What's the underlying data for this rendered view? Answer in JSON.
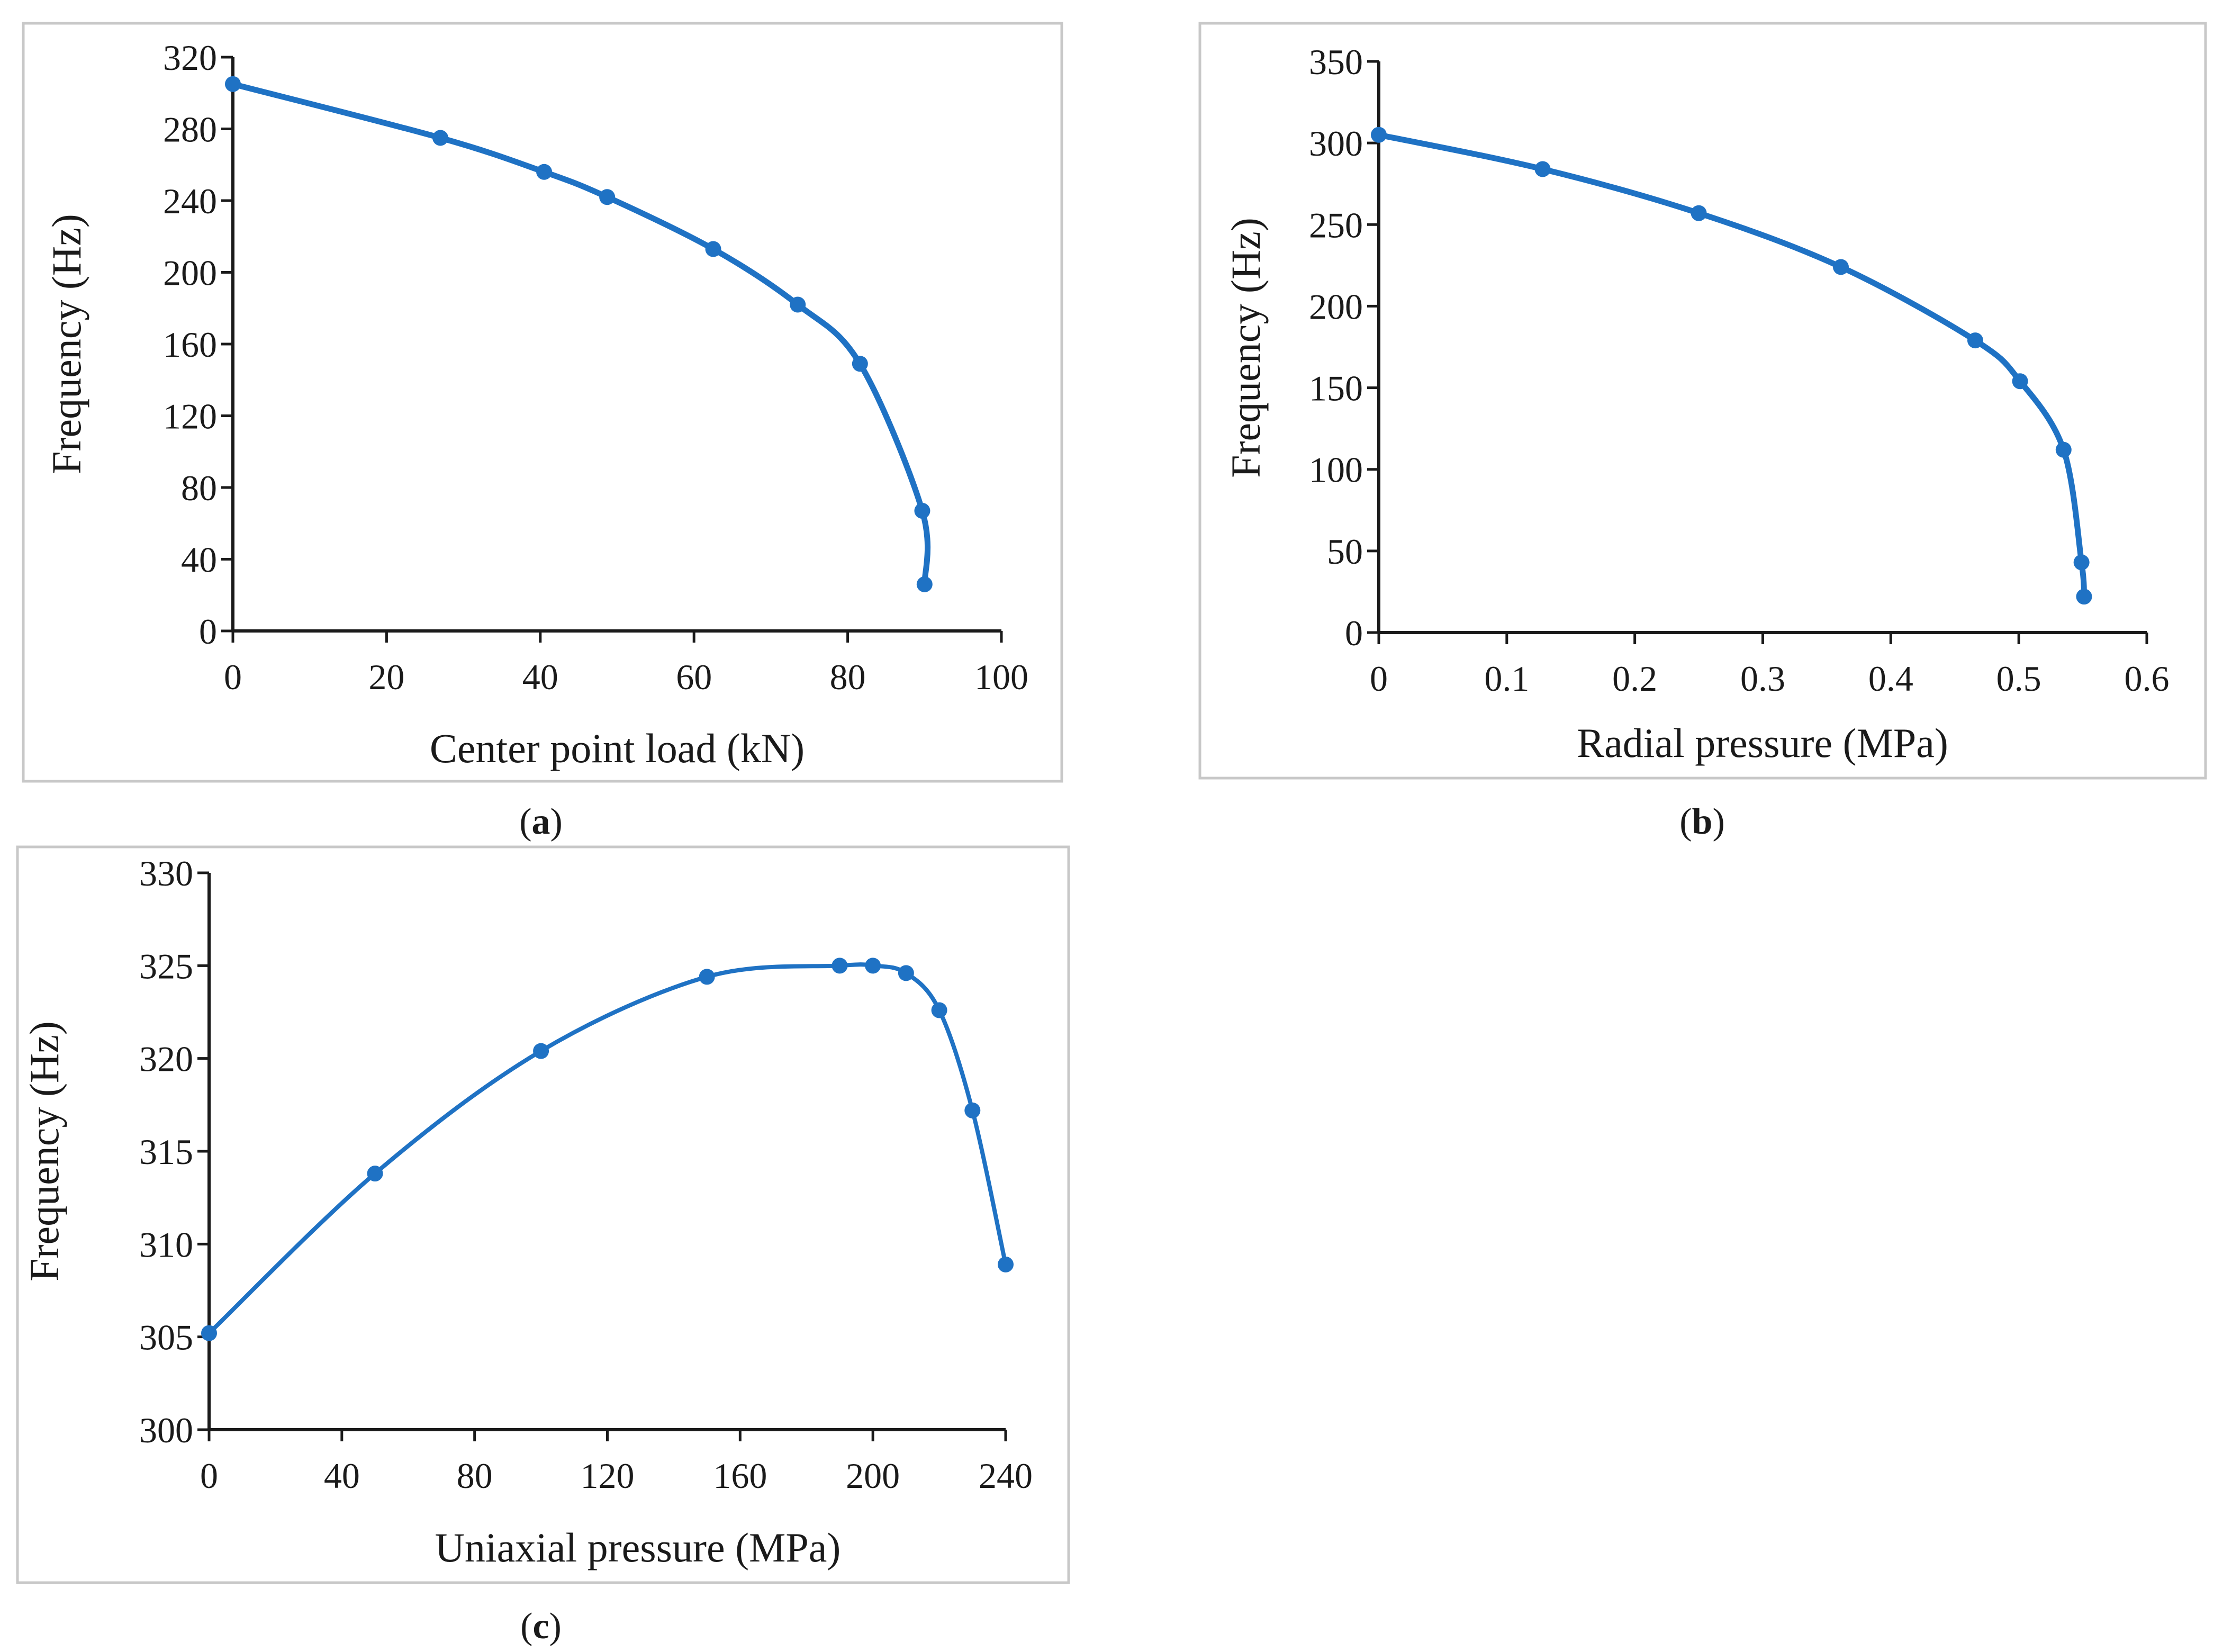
{
  "figure": {
    "captions": [
      {
        "open": "(",
        "letter": "a",
        "close": ")"
      },
      {
        "open": "(",
        "letter": "b",
        "close": ")"
      },
      {
        "open": "(",
        "letter": "c",
        "close": ")"
      }
    ]
  },
  "colors": {
    "series": "#1f72c4",
    "axis": "#1a1a1a",
    "frame": "#c8c8c8"
  },
  "chart_data": [
    {
      "type": "line",
      "title": "",
      "xlabel": "Center point load (kN)",
      "ylabel": "Frequency (Hz)",
      "xlim": [
        0,
        100
      ],
      "ylim": [
        0,
        320
      ],
      "xticks": [
        "0",
        "20",
        "40",
        "60",
        "80",
        "100"
      ],
      "yticks": [
        "0",
        "40",
        "80",
        "120",
        "160",
        "200",
        "240",
        "280",
        "320"
      ],
      "grid": false,
      "series": [
        {
          "name": "Frequency",
          "x": [
            0,
            27,
            40.5,
            48.7,
            62.5,
            73.5,
            81.6,
            89.7,
            90
          ],
          "y": [
            305,
            275,
            256,
            242,
            213,
            182,
            149,
            67,
            26
          ]
        }
      ]
    },
    {
      "type": "line",
      "title": "",
      "xlabel": "Radial pressure (MPa)",
      "ylabel": "Frequency (Hz)",
      "xlim": [
        0,
        0.6
      ],
      "ylim": [
        0,
        350
      ],
      "xticks": [
        "0",
        "0.1",
        "0.2",
        "0.3",
        "0.4",
        "0.5",
        "0.6"
      ],
      "yticks": [
        "0",
        "50",
        "100",
        "150",
        "200",
        "250",
        "300",
        "350"
      ],
      "grid": false,
      "series": [
        {
          "name": "Frequency",
          "x": [
            0,
            0.128,
            0.25,
            0.361,
            0.466,
            0.501,
            0.535,
            0.549,
            0.551
          ],
          "y": [
            305,
            284,
            257,
            224,
            179,
            154,
            112,
            43,
            22
          ]
        }
      ]
    },
    {
      "type": "line",
      "title": "",
      "xlabel": "Uniaxial pressure (MPa)",
      "ylabel": "Frequency (Hz)",
      "xlim": [
        0,
        240
      ],
      "ylim": [
        300,
        330
      ],
      "xticks": [
        "0",
        "40",
        "80",
        "120",
        "160",
        "200",
        "240"
      ],
      "yticks": [
        "300",
        "305",
        "310",
        "315",
        "320",
        "325",
        "330"
      ],
      "grid": false,
      "series": [
        {
          "name": "Frequency",
          "x": [
            0,
            50,
            100,
            150,
            190,
            200,
            210,
            220,
            230,
            240
          ],
          "y": [
            305.2,
            313.8,
            320.4,
            324.4,
            325,
            325,
            324.6,
            322.6,
            317.2,
            308.9
          ]
        }
      ]
    }
  ]
}
